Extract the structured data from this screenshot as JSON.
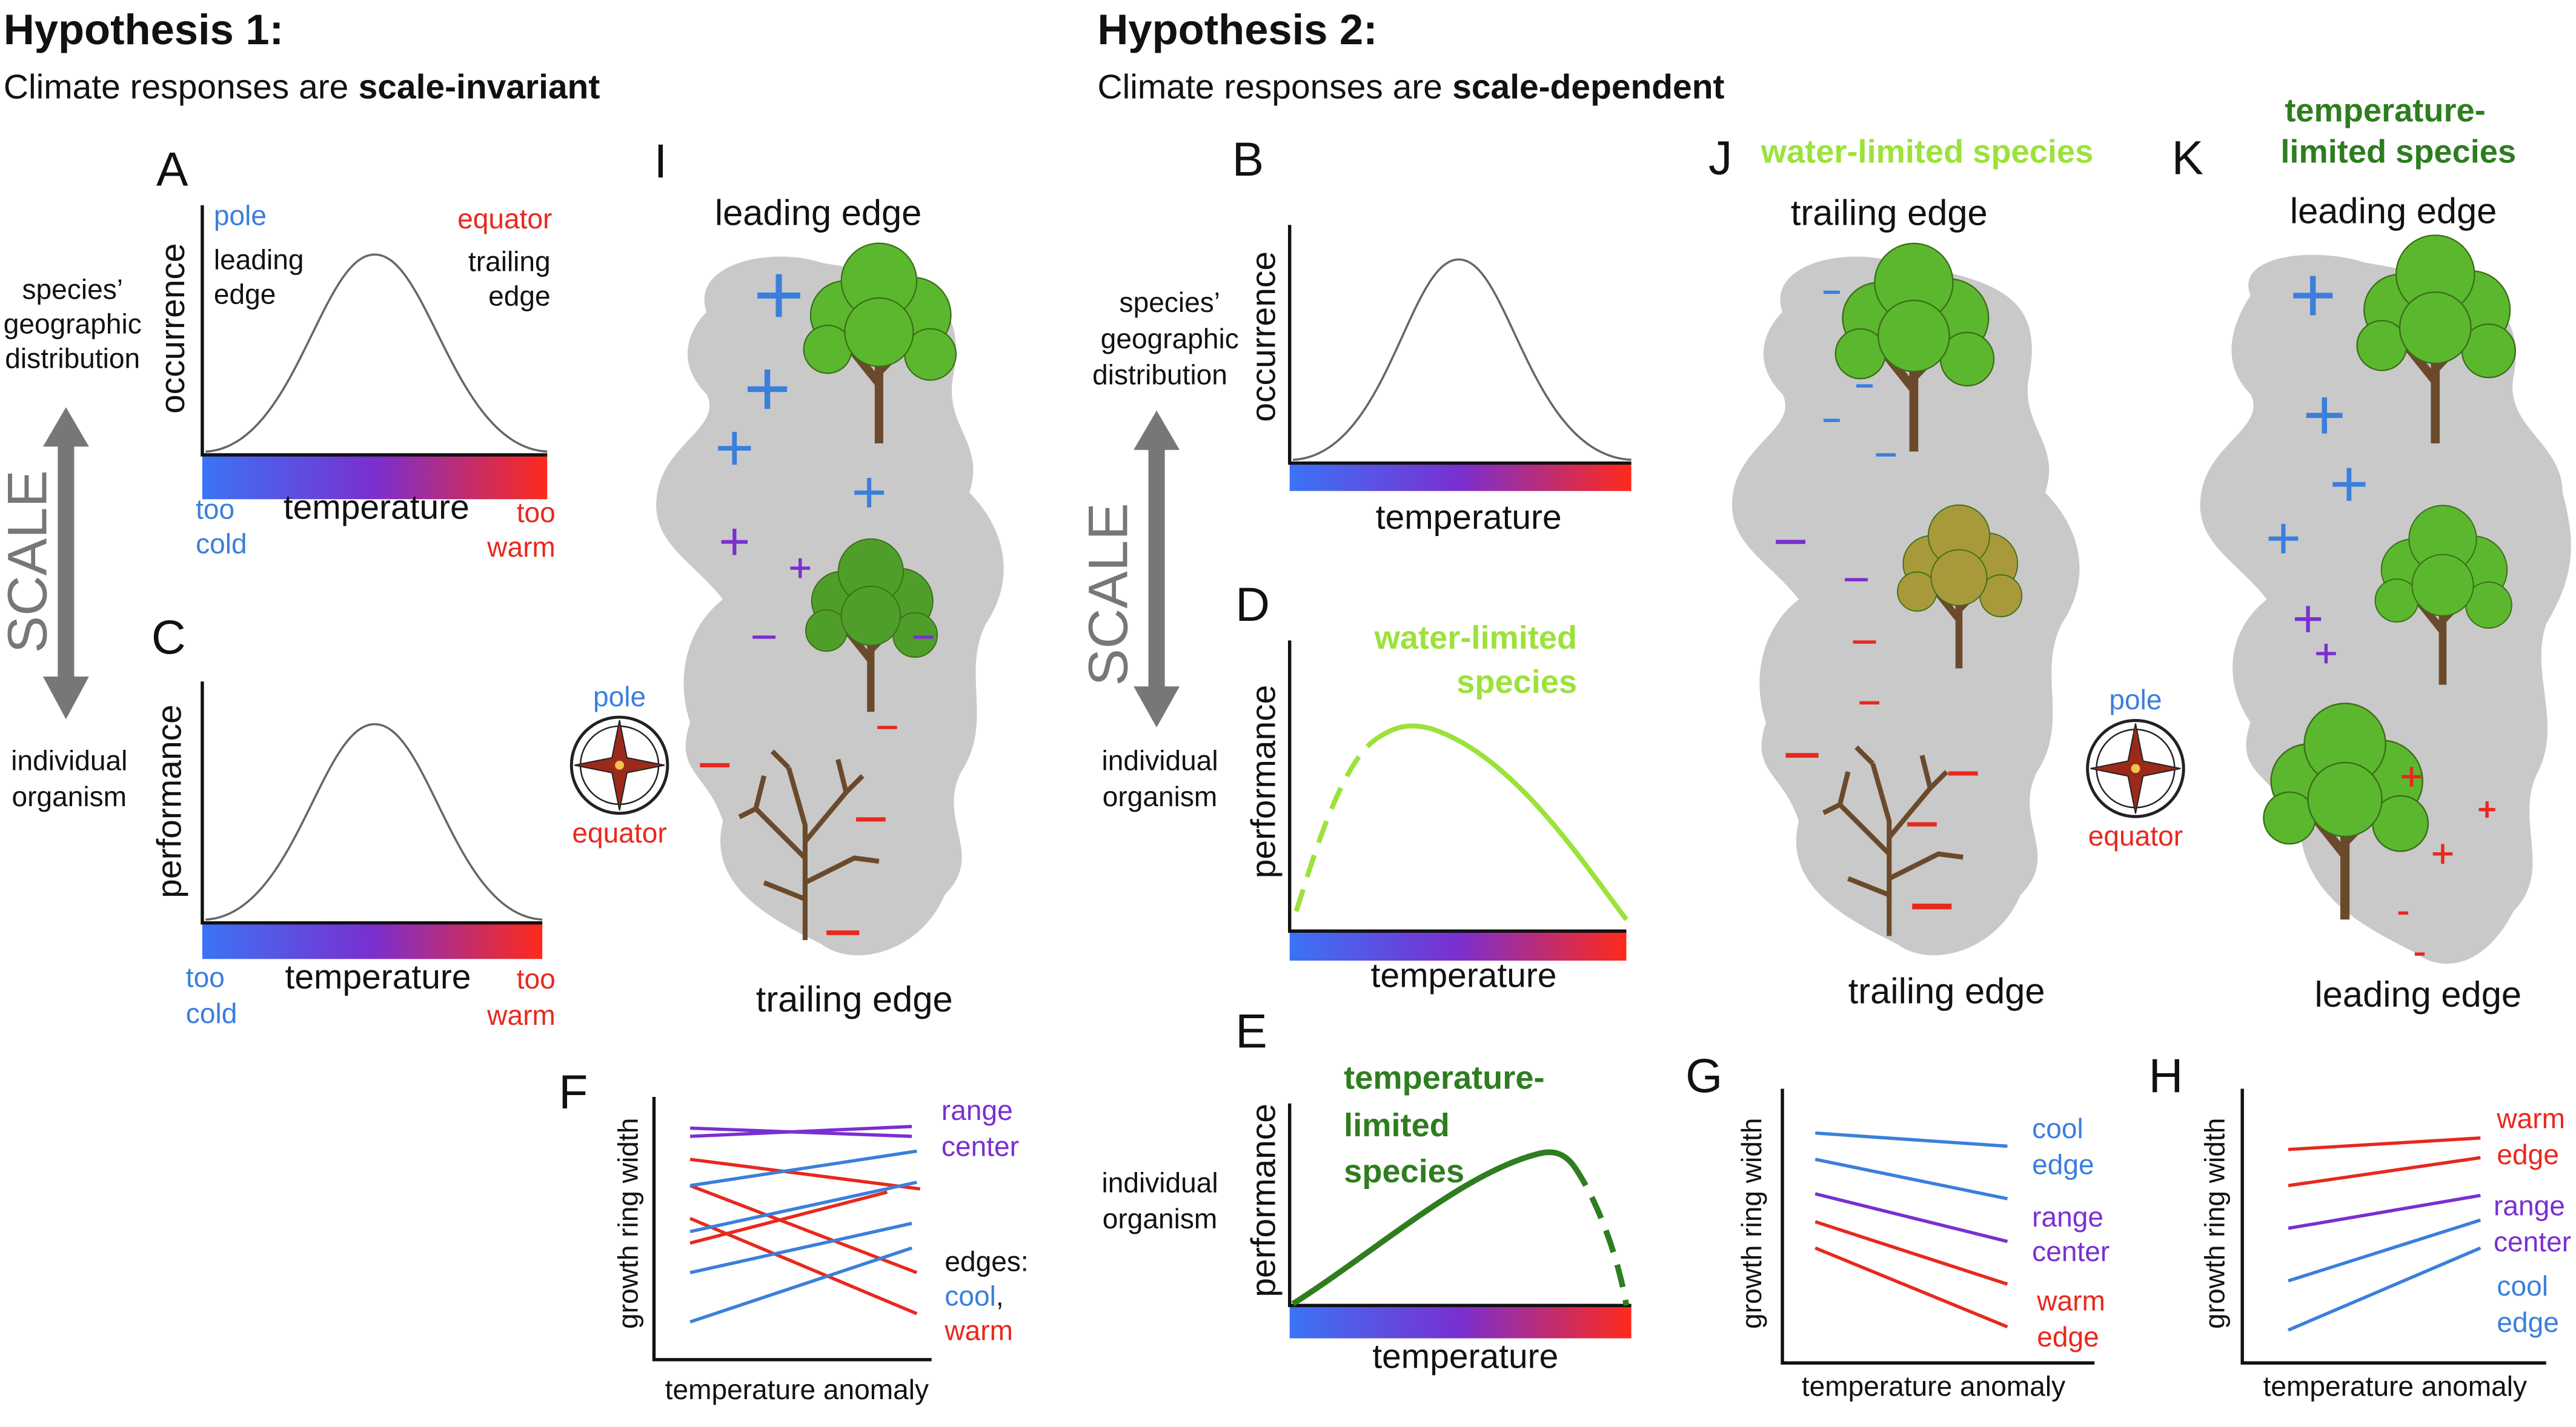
{
  "hypothesis_1": {
    "title": "Hypothesis 1:",
    "statement": "Climate responses are",
    "emphasis": "scale-invariant"
  },
  "hypothesis_2": {
    "title": "Hypothesis 2:",
    "statement": "Climate responses are",
    "emphasis": "scale-dependent"
  },
  "scale_1": {
    "top": [
      "species’",
      "geographic",
      "distribution"
    ],
    "label": "SCALE",
    "bottom": [
      "individual",
      "organism"
    ]
  },
  "scale_2": {
    "top": [
      "species’",
      "geographic",
      "distribution"
    ],
    "label": "SCALE",
    "bottom": [
      "individual",
      "organism"
    ],
    "bottom_e": [
      "individual",
      "organism"
    ]
  },
  "panel_a": {
    "letter": "A",
    "y_label": "occurrence",
    "x_label": "temperature",
    "pole": "pole",
    "equator": "equator",
    "leading": [
      "leading",
      "edge"
    ],
    "trailing": [
      "trailing",
      "edge"
    ],
    "cold": [
      "too",
      "cold"
    ],
    "warm": [
      "too",
      "warm"
    ]
  },
  "panel_c": {
    "letter": "C",
    "y_label": "performance",
    "x_label": "temperature",
    "cold": [
      "too",
      "cold"
    ],
    "warm": [
      "too",
      "warm"
    ]
  },
  "panel_i": {
    "letter": "I",
    "top": "leading edge",
    "bottom": "trailing edge",
    "compass": {
      "north": "pole",
      "south": "equator"
    }
  },
  "panel_b": {
    "letter": "B",
    "y_label": "occurrence",
    "x_label": "temperature"
  },
  "panel_d": {
    "letter": "D",
    "species": [
      "water-limited",
      "species"
    ],
    "y_label": "performance",
    "x_label": "temperature"
  },
  "panel_e": {
    "letter": "E",
    "species": [
      "temperature-",
      "limited",
      "species"
    ],
    "y_label": "performance",
    "x_label": "temperature"
  },
  "panel_j": {
    "letter": "J",
    "species": "water-limited species",
    "top": "trailing edge",
    "bottom": "trailing edge"
  },
  "panel_k": {
    "letter": "K",
    "species": [
      "temperature-",
      "limited species"
    ],
    "top": "leading edge",
    "bottom": "leading edge",
    "compass": {
      "north": "pole",
      "south": "equator"
    }
  },
  "panel_f": {
    "letter": "F",
    "y_label": "growth ring width",
    "x_label": "temperature anomaly",
    "center": [
      "range",
      "center"
    ],
    "edges": "edges:",
    "cool": "cool",
    "comma": ",",
    "warm": "warm"
  },
  "panel_g": {
    "letter": "G",
    "y_label": "growth ring width",
    "x_label": "temperature anomaly",
    "cool": [
      "cool",
      "edge"
    ],
    "center": [
      "range",
      "center"
    ],
    "warm": [
      "warm",
      "edge"
    ]
  },
  "panel_h": {
    "letter": "H",
    "y_label": "growth ring width",
    "x_label": "temperature anomaly",
    "warm": [
      "warm",
      "edge"
    ],
    "center": [
      "range",
      "center"
    ],
    "cool": [
      "cool",
      "edge"
    ]
  }
}
